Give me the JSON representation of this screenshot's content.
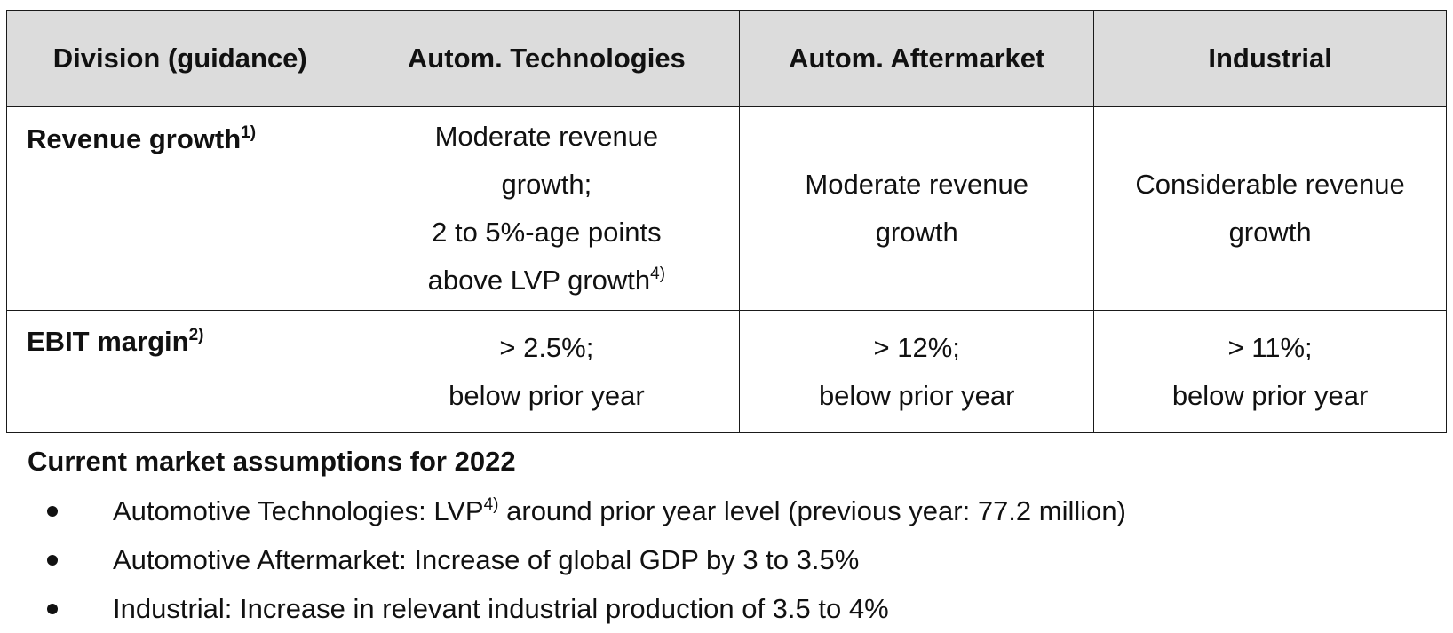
{
  "table": {
    "headers": [
      "Division (guidance)",
      "Autom. Technologies",
      "Autom. Aftermarket",
      "Industrial"
    ],
    "rows": [
      {
        "label": "Revenue growth",
        "label_note": "1)",
        "cells": [
          {
            "lines": [
              "Moderate revenue",
              "growth;",
              "2 to 5%-age points"
            ],
            "last_line": "above LVP growth",
            "last_line_note": "4)"
          },
          {
            "lines": [
              "Moderate revenue",
              "growth"
            ]
          },
          {
            "lines": [
              "Considerable revenue",
              "growth"
            ]
          }
        ]
      },
      {
        "label": "EBIT margin",
        "label_note": "2)",
        "cells": [
          {
            "lines": [
              "> 2.5%;",
              "below prior year"
            ]
          },
          {
            "lines": [
              "> 12%;",
              "below prior year"
            ]
          },
          {
            "lines": [
              "> 11%;",
              "below prior year"
            ]
          }
        ]
      }
    ]
  },
  "assumptions": {
    "title": "Current market assumptions for 2022",
    "bullets": [
      {
        "prefix": "Automotive Technologies: LVP",
        "note": "4)",
        "suffix": " around prior year level (previous year: 77.2 million)"
      },
      {
        "text": "Automotive Aftermarket: Increase of global GDP by 3 to 3.5%"
      },
      {
        "text": "Industrial: Increase in relevant industrial production of 3.5 to 4%"
      }
    ]
  }
}
